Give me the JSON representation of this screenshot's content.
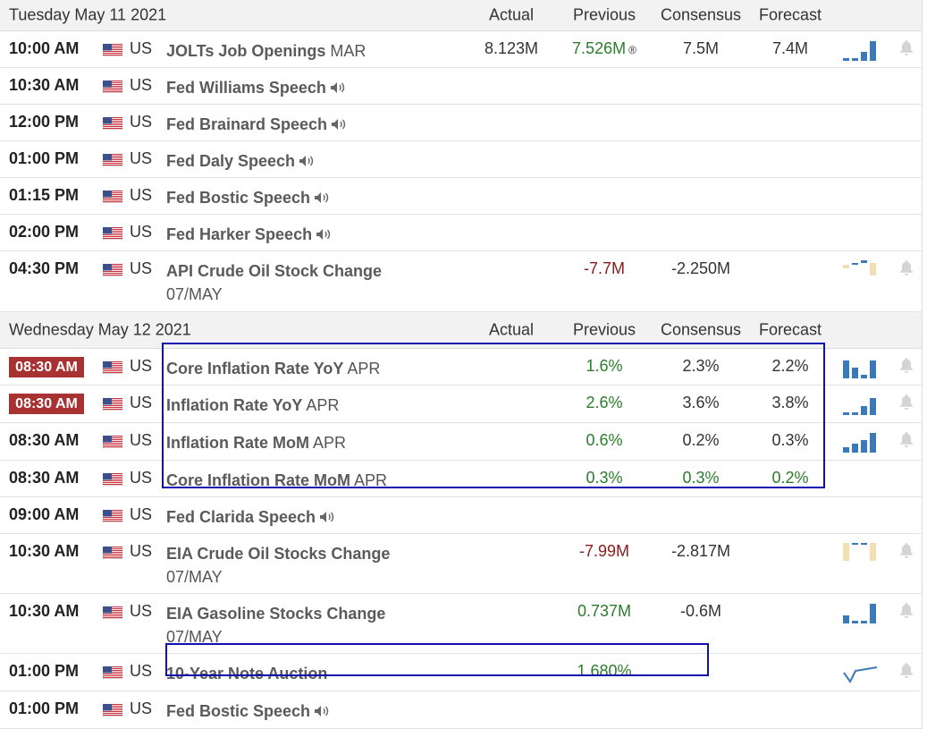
{
  "days": [
    {
      "date": "Tuesday May 11 2021",
      "columns": [
        "Actual",
        "Previous",
        "Consensus",
        "Forecast"
      ],
      "rows": [
        {
          "time": "10:00 AM",
          "country": "US",
          "event": "JOLTs Job Openings",
          "period": "MAR",
          "actual": "8.123M",
          "previous": "7.526M",
          "revised": "®",
          "consensus": "7.5M",
          "forecast": "7.4M",
          "previous_color": "#2a7d2a"
        },
        {
          "time": "10:30 AM",
          "country": "US",
          "event": "Fed Williams Speech",
          "audio": true
        },
        {
          "time": "12:00 PM",
          "country": "US",
          "event": "Fed Brainard Speech",
          "audio": true
        },
        {
          "time": "01:00 PM",
          "country": "US",
          "event": "Fed Daly Speech",
          "audio": true
        },
        {
          "time": "01:15 PM",
          "country": "US",
          "event": "Fed Bostic Speech",
          "audio": true
        },
        {
          "time": "02:00 PM",
          "country": "US",
          "event": "Fed Harker Speech",
          "audio": true
        },
        {
          "time": "04:30 PM",
          "country": "US",
          "event": "API Crude Oil Stock Change",
          "period": "07/MAY",
          "previous": "-7.7M",
          "consensus": "-2.250M",
          "previous_color": "#8b1a1a"
        }
      ]
    },
    {
      "date": "Wednesday May 12 2021",
      "columns": [
        "Actual",
        "Previous",
        "Consensus",
        "Forecast"
      ],
      "rows": [
        {
          "time": "08:30 AM",
          "highlight": true,
          "country": "US",
          "event": "Core Inflation Rate YoY",
          "period": "APR",
          "previous": "1.6%",
          "consensus": "2.3%",
          "forecast": "2.2%",
          "previous_color": "#2a7d2a"
        },
        {
          "time": "08:30 AM",
          "highlight": true,
          "country": "US",
          "event": "Inflation Rate YoY",
          "period": "APR",
          "previous": "2.6%",
          "consensus": "3.6%",
          "forecast": "3.8%",
          "previous_color": "#2a7d2a"
        },
        {
          "time": "08:30 AM",
          "country": "US",
          "event": "Inflation Rate MoM",
          "period": "APR",
          "previous": "0.6%",
          "consensus": "0.2%",
          "forecast": "0.3%",
          "previous_color": "#2a7d2a"
        },
        {
          "time": "08:30 AM",
          "country": "US",
          "event": "Core Inflation Rate MoM",
          "period": "APR",
          "previous": "0.3%",
          "consensus": "0.3%",
          "forecast": "0.2%",
          "previous_color": "#2a7d2a",
          "consensus_color": "#2a7d2a",
          "forecast_color": "#2a7d2a"
        },
        {
          "time": "09:00 AM",
          "country": "US",
          "event": "Fed Clarida Speech",
          "audio": true
        },
        {
          "time": "10:30 AM",
          "country": "US",
          "event": "EIA Crude Oil Stocks Change",
          "period": "07/MAY",
          "previous": "-7.99M",
          "consensus": "-2.817M",
          "previous_color": "#8b1a1a"
        },
        {
          "time": "10:30 AM",
          "country": "US",
          "event": "EIA Gasoline Stocks Change",
          "period": "07/MAY",
          "previous": "0.737M",
          "consensus": "-0.6M",
          "previous_color": "#2a7d2a"
        },
        {
          "time": "01:00 PM",
          "country": "US",
          "event": "10-Year Note Auction",
          "previous": "1.680%",
          "previous_color": "#2a7d2a"
        },
        {
          "time": "01:00 PM",
          "country": "US",
          "event": "Fed Bostic Speech",
          "audio": true
        }
      ]
    }
  ]
}
